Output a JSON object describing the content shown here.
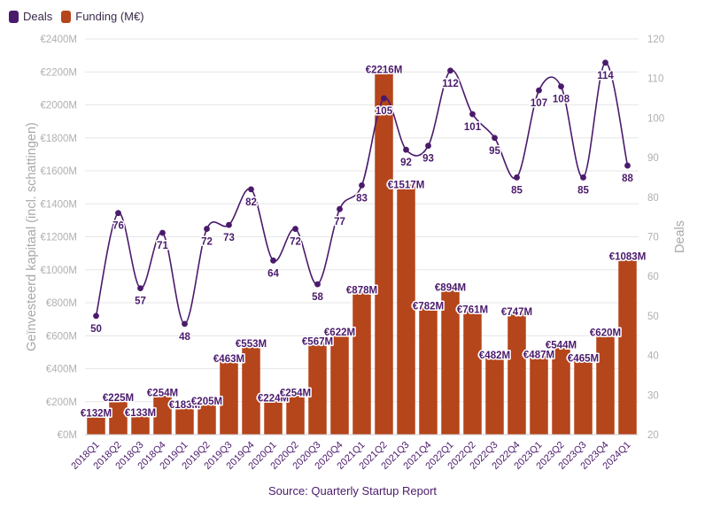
{
  "legend": [
    {
      "label": "Deals",
      "color": "#4a1a6b"
    },
    {
      "label": "Funding (M€)",
      "color": "#b5451b"
    }
  ],
  "source": "Source: Quarterly Startup Report",
  "chart_data": {
    "type": "bar",
    "categories": [
      "2018Q1",
      "2018Q2",
      "2018Q3",
      "2018Q4",
      "2019Q1",
      "2019Q2",
      "2019Q3",
      "2019Q4",
      "2020Q1",
      "2020Q2",
      "2020Q3",
      "2020Q4",
      "2021Q1",
      "2021Q2",
      "2021Q3",
      "2021Q4",
      "2022Q1",
      "2022Q2",
      "2022Q3",
      "2022Q4",
      "2023Q1",
      "2023Q2",
      "2023Q3",
      "2023Q4",
      "2024Q1"
    ],
    "series": [
      {
        "name": "Funding (M€)",
        "type": "bar",
        "axis": "left",
        "color": "#b5451b",
        "values": [
          132,
          225,
          133,
          254,
          183,
          205,
          463,
          553,
          224,
          254,
          567,
          622,
          878,
          2216,
          1517,
          782,
          894,
          761,
          482,
          747,
          487,
          544,
          465,
          620,
          1083
        ],
        "labels": [
          "€132M",
          "€225M",
          "€133M",
          "€254M",
          "€183M",
          "€205M",
          "€463M",
          "€553M",
          "€224M",
          "€254M",
          "€567M",
          "€622M",
          "€878M",
          "€2216M",
          "€1517M",
          "€782M",
          "€894M",
          "€761M",
          "€482M",
          "€747M",
          "€487M",
          "€544M",
          "€465M",
          "€620M",
          "€1083M"
        ]
      },
      {
        "name": "Deals",
        "type": "line",
        "axis": "right",
        "color": "#4a1a6b",
        "values": [
          50,
          76,
          57,
          71,
          48,
          72,
          73,
          82,
          64,
          72,
          58,
          77,
          83,
          105,
          92,
          93,
          112,
          101,
          95,
          85,
          107,
          108,
          85,
          114,
          88
        ]
      }
    ],
    "y_left": {
      "label": "Geïnvesteerd kapitaal (incl. schattingen)",
      "min": 0,
      "max": 2400,
      "ticks": [
        "€0M",
        "€200M",
        "€400M",
        "€600M",
        "€800M",
        "€1000M",
        "€1200M",
        "€1400M",
        "€1600M",
        "€1800M",
        "€2000M",
        "€2200M",
        "€2400M"
      ]
    },
    "y_right": {
      "label": "Deals",
      "min": 20,
      "max": 120,
      "ticks": [
        "20",
        "30",
        "40",
        "50",
        "60",
        "70",
        "80",
        "90",
        "100",
        "110",
        "120"
      ]
    },
    "grid": true,
    "legend_position": "top-left"
  }
}
